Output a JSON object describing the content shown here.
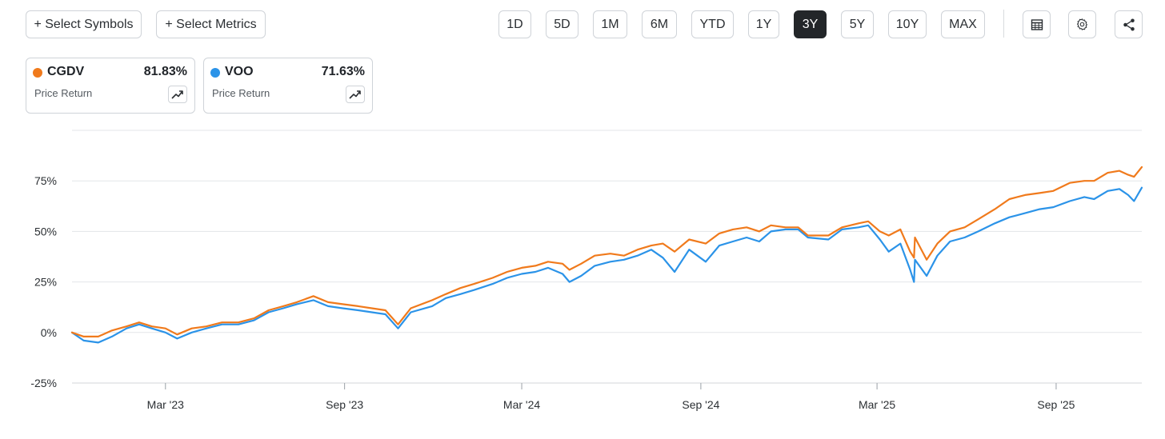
{
  "toolbar": {
    "select_symbols": "+ Select Symbols",
    "select_metrics": "+ Select Metrics",
    "ranges": [
      "1D",
      "5D",
      "1M",
      "6M",
      "YTD",
      "1Y",
      "3Y",
      "5Y",
      "10Y",
      "MAX"
    ],
    "active_range": "3Y",
    "icons": [
      "table-icon",
      "settings-gear-icon",
      "share-icon"
    ]
  },
  "legend": [
    {
      "symbol": "CGDV",
      "value": "81.83%",
      "metric": "Price Return",
      "color": "#f07a1c"
    },
    {
      "symbol": "VOO",
      "value": "71.63%",
      "metric": "Price Return",
      "color": "#2b93e8"
    }
  ],
  "chart_data": {
    "type": "line",
    "xlabel": "",
    "ylabel": "",
    "x_ticks": [
      "Mar '23",
      "Sep '23",
      "Mar '24",
      "Sep '24",
      "Mar '25",
      "Sep '25"
    ],
    "y_ticks": [
      "-25%",
      "0%",
      "25%",
      "50%",
      "75%"
    ],
    "ylim": [
      -25,
      100
    ],
    "xlim": [
      "2022-11-25",
      "2025-11-28"
    ],
    "grid": true,
    "series": [
      {
        "name": "CGDV",
        "color": "#f07a1c",
        "points": [
          [
            "2022-11-25",
            0
          ],
          [
            "2022-12-07",
            -2
          ],
          [
            "2022-12-22",
            -2
          ],
          [
            "2023-01-05",
            1
          ],
          [
            "2023-01-20",
            3
          ],
          [
            "2023-02-02",
            5
          ],
          [
            "2023-02-15",
            3
          ],
          [
            "2023-03-01",
            2
          ],
          [
            "2023-03-13",
            -1
          ],
          [
            "2023-03-28",
            2
          ],
          [
            "2023-04-12",
            3
          ],
          [
            "2023-04-28",
            5
          ],
          [
            "2023-05-15",
            5
          ],
          [
            "2023-05-31",
            7
          ],
          [
            "2023-06-15",
            11
          ],
          [
            "2023-06-30",
            13
          ],
          [
            "2023-07-14",
            15
          ],
          [
            "2023-07-31",
            18
          ],
          [
            "2023-08-15",
            15
          ],
          [
            "2023-08-30",
            14
          ],
          [
            "2023-09-15",
            13
          ],
          [
            "2023-09-29",
            12
          ],
          [
            "2023-10-13",
            11
          ],
          [
            "2023-10-26",
            4
          ],
          [
            "2023-11-08",
            12
          ],
          [
            "2023-11-30",
            16
          ],
          [
            "2023-12-14",
            19
          ],
          [
            "2023-12-29",
            22
          ],
          [
            "2024-01-12",
            24
          ],
          [
            "2024-01-31",
            27
          ],
          [
            "2024-02-15",
            30
          ],
          [
            "2024-03-01",
            32
          ],
          [
            "2024-03-15",
            33
          ],
          [
            "2024-03-28",
            35
          ],
          [
            "2024-04-12",
            34
          ],
          [
            "2024-04-19",
            31
          ],
          [
            "2024-05-01",
            34
          ],
          [
            "2024-05-15",
            38
          ],
          [
            "2024-05-31",
            39
          ],
          [
            "2024-06-14",
            38
          ],
          [
            "2024-06-28",
            41
          ],
          [
            "2024-07-12",
            43
          ],
          [
            "2024-07-24",
            44
          ],
          [
            "2024-08-05",
            40
          ],
          [
            "2024-08-20",
            46
          ],
          [
            "2024-09-06",
            44
          ],
          [
            "2024-09-20",
            49
          ],
          [
            "2024-10-04",
            51
          ],
          [
            "2024-10-18",
            52
          ],
          [
            "2024-10-31",
            50
          ],
          [
            "2024-11-12",
            53
          ],
          [
            "2024-11-27",
            52
          ],
          [
            "2024-12-10",
            52
          ],
          [
            "2024-12-20",
            48
          ],
          [
            "2025-01-10",
            48
          ],
          [
            "2025-01-24",
            52
          ],
          [
            "2025-02-10",
            54
          ],
          [
            "2025-02-20",
            55
          ],
          [
            "2025-03-04",
            50
          ],
          [
            "2025-03-13",
            48
          ],
          [
            "2025-03-25",
            51
          ],
          [
            "2025-04-04",
            40
          ],
          [
            "2025-04-08",
            37
          ],
          [
            "2025-04-09",
            47
          ],
          [
            "2025-04-21",
            36
          ],
          [
            "2025-05-02",
            44
          ],
          [
            "2025-05-15",
            50
          ],
          [
            "2025-05-30",
            52
          ],
          [
            "2025-06-13",
            56
          ],
          [
            "2025-06-30",
            61
          ],
          [
            "2025-07-15",
            66
          ],
          [
            "2025-07-31",
            68
          ],
          [
            "2025-08-15",
            69
          ],
          [
            "2025-08-29",
            70
          ],
          [
            "2025-09-15",
            74
          ],
          [
            "2025-09-30",
            75
          ],
          [
            "2025-10-10",
            75
          ],
          [
            "2025-10-24",
            79
          ],
          [
            "2025-11-05",
            80
          ],
          [
            "2025-11-14",
            78
          ],
          [
            "2025-11-20",
            77
          ],
          [
            "2025-11-28",
            81.83
          ]
        ]
      },
      {
        "name": "VOO",
        "color": "#2b93e8",
        "points": [
          [
            "2022-11-25",
            0
          ],
          [
            "2022-12-07",
            -4
          ],
          [
            "2022-12-22",
            -5
          ],
          [
            "2023-01-05",
            -2
          ],
          [
            "2023-01-20",
            2
          ],
          [
            "2023-02-02",
            4
          ],
          [
            "2023-02-15",
            2
          ],
          [
            "2023-03-01",
            0
          ],
          [
            "2023-03-13",
            -3
          ],
          [
            "2023-03-28",
            0
          ],
          [
            "2023-04-12",
            2
          ],
          [
            "2023-04-28",
            4
          ],
          [
            "2023-05-15",
            4
          ],
          [
            "2023-05-31",
            6
          ],
          [
            "2023-06-15",
            10
          ],
          [
            "2023-06-30",
            12
          ],
          [
            "2023-07-14",
            14
          ],
          [
            "2023-07-31",
            16
          ],
          [
            "2023-08-15",
            13
          ],
          [
            "2023-08-30",
            12
          ],
          [
            "2023-09-15",
            11
          ],
          [
            "2023-09-29",
            10
          ],
          [
            "2023-10-13",
            9
          ],
          [
            "2023-10-26",
            2
          ],
          [
            "2023-11-08",
            10
          ],
          [
            "2023-11-30",
            13
          ],
          [
            "2023-12-14",
            17
          ],
          [
            "2023-12-29",
            19
          ],
          [
            "2024-01-12",
            21
          ],
          [
            "2024-01-31",
            24
          ],
          [
            "2024-02-15",
            27
          ],
          [
            "2024-03-01",
            29
          ],
          [
            "2024-03-15",
            30
          ],
          [
            "2024-03-28",
            32
          ],
          [
            "2024-04-12",
            29
          ],
          [
            "2024-04-19",
            25
          ],
          [
            "2024-05-01",
            28
          ],
          [
            "2024-05-15",
            33
          ],
          [
            "2024-05-31",
            35
          ],
          [
            "2024-06-14",
            36
          ],
          [
            "2024-06-28",
            38
          ],
          [
            "2024-07-12",
            41
          ],
          [
            "2024-07-24",
            37
          ],
          [
            "2024-08-05",
            30
          ],
          [
            "2024-08-20",
            41
          ],
          [
            "2024-09-06",
            35
          ],
          [
            "2024-09-20",
            43
          ],
          [
            "2024-10-04",
            45
          ],
          [
            "2024-10-18",
            47
          ],
          [
            "2024-10-31",
            45
          ],
          [
            "2024-11-12",
            50
          ],
          [
            "2024-11-27",
            51
          ],
          [
            "2024-12-10",
            51
          ],
          [
            "2024-12-20",
            47
          ],
          [
            "2025-01-10",
            46
          ],
          [
            "2025-01-24",
            51
          ],
          [
            "2025-02-10",
            52
          ],
          [
            "2025-02-20",
            53
          ],
          [
            "2025-03-04",
            46
          ],
          [
            "2025-03-13",
            40
          ],
          [
            "2025-03-25",
            44
          ],
          [
            "2025-04-04",
            31
          ],
          [
            "2025-04-08",
            25
          ],
          [
            "2025-04-09",
            36
          ],
          [
            "2025-04-21",
            28
          ],
          [
            "2025-05-02",
            38
          ],
          [
            "2025-05-15",
            45
          ],
          [
            "2025-05-30",
            47
          ],
          [
            "2025-06-13",
            50
          ],
          [
            "2025-06-30",
            54
          ],
          [
            "2025-07-15",
            57
          ],
          [
            "2025-07-31",
            59
          ],
          [
            "2025-08-15",
            61
          ],
          [
            "2025-08-29",
            62
          ],
          [
            "2025-09-15",
            65
          ],
          [
            "2025-09-30",
            67
          ],
          [
            "2025-10-10",
            66
          ],
          [
            "2025-10-24",
            70
          ],
          [
            "2025-11-05",
            71
          ],
          [
            "2025-11-14",
            68
          ],
          [
            "2025-11-20",
            65
          ],
          [
            "2025-11-28",
            71.63
          ]
        ]
      }
    ]
  }
}
